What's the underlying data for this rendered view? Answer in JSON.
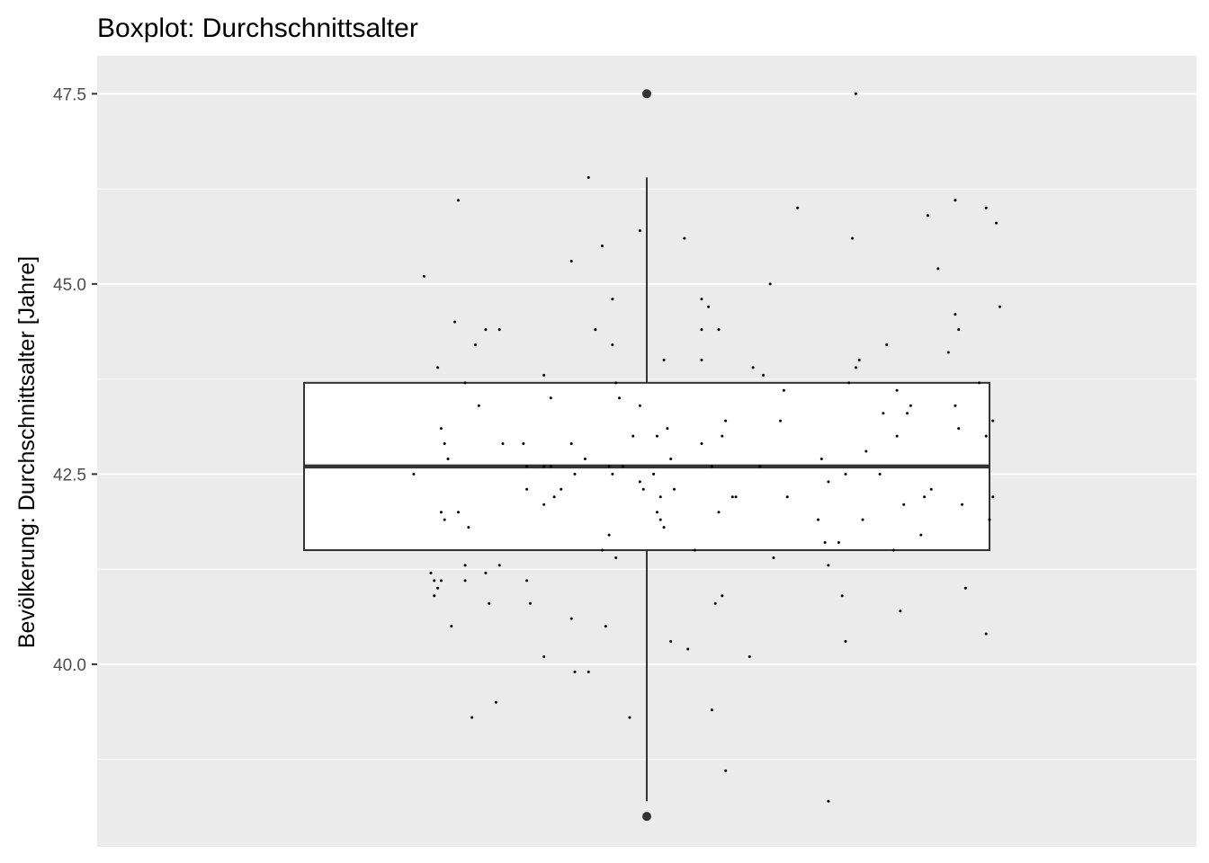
{
  "chart_data": {
    "type": "boxplot",
    "title": "Boxplot: Durchschnittsalter",
    "ylabel": "Bevölkerung: Durchschnittsalter [Jahre]",
    "ylim": [
      37.6,
      48.0
    ],
    "yticks": [
      40.0,
      42.5,
      45.0,
      47.5
    ],
    "ytick_labels": [
      "40.0",
      "42.5",
      "45.0",
      "47.5"
    ],
    "grid": true,
    "box": {
      "q1": 41.5,
      "median": 42.6,
      "q3": 43.7,
      "whisker_low": 38.2,
      "whisker_high": 46.4,
      "outliers": [
        47.5,
        38.0
      ]
    },
    "jitter_points": [
      [
        -0.68,
        42.5
      ],
      [
        -0.65,
        45.1
      ],
      [
        -0.61,
        43.9
      ],
      [
        -0.6,
        43.1
      ],
      [
        -0.59,
        42.9
      ],
      [
        -0.58,
        42.7
      ],
      [
        -0.6,
        42.0
      ],
      [
        -0.59,
        41.9
      ],
      [
        -0.63,
        41.2
      ],
      [
        -0.62,
        41.1
      ],
      [
        -0.61,
        41.0
      ],
      [
        -0.62,
        40.9
      ],
      [
        -0.6,
        41.1
      ],
      [
        -0.57,
        40.5
      ],
      [
        -0.56,
        44.5
      ],
      [
        -0.55,
        46.1
      ],
      [
        -0.55,
        42.0
      ],
      [
        -0.53,
        43.7
      ],
      [
        -0.53,
        41.3
      ],
      [
        -0.53,
        41.1
      ],
      [
        -0.52,
        41.8
      ],
      [
        -0.5,
        44.2
      ],
      [
        -0.49,
        43.4
      ],
      [
        -0.51,
        39.3
      ],
      [
        -0.47,
        44.4
      ],
      [
        -0.47,
        41.2
      ],
      [
        -0.46,
        40.8
      ],
      [
        -0.43,
        44.4
      ],
      [
        -0.43,
        41.3
      ],
      [
        -0.44,
        39.5
      ],
      [
        -0.42,
        42.9
      ],
      [
        -0.36,
        42.9
      ],
      [
        -0.35,
        42.6
      ],
      [
        -0.35,
        42.3
      ],
      [
        -0.35,
        41.1
      ],
      [
        -0.34,
        40.8
      ],
      [
        -0.3,
        43.8
      ],
      [
        -0.3,
        42.6
      ],
      [
        -0.3,
        42.1
      ],
      [
        -0.3,
        40.1
      ],
      [
        -0.28,
        43.5
      ],
      [
        -0.28,
        42.6
      ],
      [
        -0.27,
        42.2
      ],
      [
        -0.25,
        42.3
      ],
      [
        -0.22,
        45.3
      ],
      [
        -0.22,
        42.9
      ],
      [
        -0.21,
        42.5
      ],
      [
        -0.22,
        40.6
      ],
      [
        -0.21,
        39.9
      ],
      [
        -0.18,
        42.7
      ],
      [
        -0.17,
        46.4
      ],
      [
        -0.17,
        39.9
      ],
      [
        -0.15,
        44.4
      ],
      [
        -0.13,
        45.5
      ],
      [
        -0.13,
        41.5
      ],
      [
        -0.12,
        40.5
      ],
      [
        -0.11,
        42.6
      ],
      [
        -0.11,
        41.7
      ],
      [
        -0.1,
        44.8
      ],
      [
        -0.1,
        44.2
      ],
      [
        -0.1,
        42.5
      ],
      [
        -0.09,
        43.7
      ],
      [
        -0.08,
        43.5
      ],
      [
        -0.09,
        41.4
      ],
      [
        -0.07,
        42.6
      ],
      [
        -0.05,
        39.3
      ],
      [
        -0.04,
        43.0
      ],
      [
        -0.02,
        45.7
      ],
      [
        -0.02,
        43.4
      ],
      [
        -0.02,
        42.4
      ],
      [
        -0.01,
        42.3
      ],
      [
        0.02,
        42.5
      ],
      [
        0.03,
        43.0
      ],
      [
        0.03,
        42.0
      ],
      [
        0.04,
        42.2
      ],
      [
        0.04,
        41.9
      ],
      [
        0.05,
        41.8
      ],
      [
        0.05,
        44.0
      ],
      [
        0.06,
        43.1
      ],
      [
        0.07,
        42.7
      ],
      [
        0.08,
        42.3
      ],
      [
        0.07,
        40.3
      ],
      [
        0.11,
        45.6
      ],
      [
        0.12,
        40.2
      ],
      [
        0.14,
        41.5
      ],
      [
        0.16,
        44.8
      ],
      [
        0.16,
        44.4
      ],
      [
        0.16,
        44.0
      ],
      [
        0.16,
        42.9
      ],
      [
        0.18,
        44.7
      ],
      [
        0.19,
        42.6
      ],
      [
        0.19,
        39.4
      ],
      [
        0.2,
        40.8
      ],
      [
        0.21,
        44.4
      ],
      [
        0.21,
        42.0
      ],
      [
        0.22,
        43.0
      ],
      [
        0.22,
        40.9
      ],
      [
        0.23,
        43.2
      ],
      [
        0.23,
        38.6
      ],
      [
        0.25,
        42.2
      ],
      [
        0.26,
        42.2
      ],
      [
        0.31,
        43.9
      ],
      [
        0.3,
        40.1
      ],
      [
        0.33,
        42.6
      ],
      [
        0.34,
        43.8
      ],
      [
        0.36,
        45.0
      ],
      [
        0.37,
        41.4
      ],
      [
        0.39,
        43.2
      ],
      [
        0.4,
        43.6
      ],
      [
        0.41,
        42.2
      ],
      [
        0.44,
        46.0
      ],
      [
        0.5,
        41.9
      ],
      [
        0.51,
        42.7
      ],
      [
        0.52,
        41.6
      ],
      [
        0.53,
        41.3
      ],
      [
        0.53,
        42.4
      ],
      [
        0.53,
        38.2
      ],
      [
        0.56,
        41.6
      ],
      [
        0.57,
        40.9
      ],
      [
        0.58,
        42.5
      ],
      [
        0.58,
        40.3
      ],
      [
        0.59,
        43.7
      ],
      [
        0.6,
        45.6
      ],
      [
        0.61,
        43.9
      ],
      [
        0.61,
        47.5
      ],
      [
        0.62,
        44.0
      ],
      [
        0.63,
        41.9
      ],
      [
        0.64,
        42.8
      ],
      [
        0.68,
        42.5
      ],
      [
        0.69,
        43.3
      ],
      [
        0.7,
        44.2
      ],
      [
        0.72,
        41.5
      ],
      [
        0.73,
        43.6
      ],
      [
        0.73,
        43.0
      ],
      [
        0.74,
        40.7
      ],
      [
        0.75,
        42.1
      ],
      [
        0.76,
        43.3
      ],
      [
        0.77,
        43.4
      ],
      [
        0.8,
        41.7
      ],
      [
        0.81,
        42.2
      ],
      [
        0.82,
        45.9
      ],
      [
        0.83,
        42.3
      ],
      [
        0.85,
        45.2
      ],
      [
        0.88,
        44.1
      ],
      [
        0.9,
        46.1
      ],
      [
        0.9,
        44.6
      ],
      [
        0.91,
        44.4
      ],
      [
        0.9,
        43.4
      ],
      [
        0.91,
        43.1
      ],
      [
        0.92,
        42.1
      ],
      [
        0.93,
        41.0
      ],
      [
        0.97,
        43.7
      ],
      [
        0.99,
        46.0
      ],
      [
        0.99,
        43.0
      ],
      [
        0.99,
        40.4
      ],
      [
        1.0,
        41.9
      ],
      [
        1.01,
        42.2
      ],
      [
        1.01,
        43.2
      ],
      [
        1.02,
        45.8
      ],
      [
        1.03,
        44.7
      ]
    ]
  }
}
